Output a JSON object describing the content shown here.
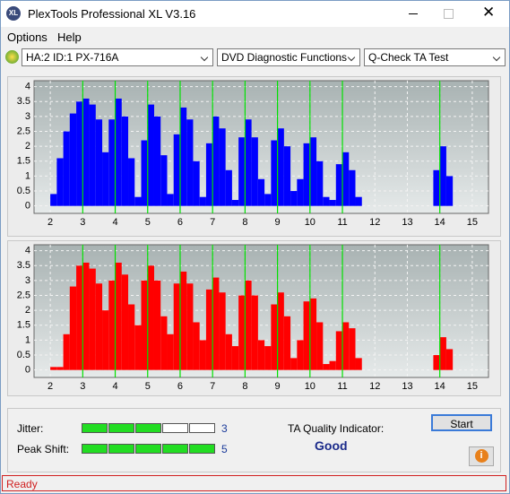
{
  "window": {
    "icon": "XL",
    "title": "PlexTools Professional XL V3.16"
  },
  "menu": [
    "Options",
    "Help"
  ],
  "toolbar": {
    "drive": "HA:2 ID:1  PX-716A",
    "function": "DVD Diagnostic Functions",
    "test": "Q-Check TA Test"
  },
  "charts": [
    {
      "type": "histogram",
      "color": "#0000ff",
      "grid": true,
      "xlim": [
        1.5,
        15.5
      ],
      "ylim": [
        -0.25,
        4.2
      ],
      "xticks": [
        2,
        3,
        4,
        5,
        6,
        7,
        8,
        9,
        10,
        11,
        12,
        13,
        14,
        15
      ],
      "yticks": [
        0,
        0.5,
        1,
        1.5,
        2,
        2.5,
        3,
        3.5,
        4
      ],
      "markers": [
        3,
        4,
        5,
        6,
        7,
        8,
        9,
        10,
        11,
        14
      ],
      "marker_color": "#00e000",
      "bins": [
        2.0,
        2.2,
        2.4,
        2.6,
        2.8,
        3.0,
        3.2,
        3.4,
        3.6,
        3.8,
        4.0,
        4.2,
        4.4,
        4.6,
        4.8,
        5.0,
        5.2,
        5.4,
        5.6,
        5.8,
        6.0,
        6.2,
        6.4,
        6.6,
        6.8,
        7.0,
        7.2,
        7.4,
        7.6,
        7.8,
        8.0,
        8.2,
        8.4,
        8.6,
        8.8,
        9.0,
        9.2,
        9.4,
        9.6,
        9.8,
        10.0,
        10.2,
        10.4,
        10.6,
        10.8,
        11.0,
        11.2,
        11.4,
        11.6,
        11.8,
        12.0,
        12.2,
        12.4,
        12.6,
        12.8,
        13.0,
        13.2,
        13.4,
        13.6,
        13.8,
        14.0,
        14.2,
        14.4,
        14.6
      ],
      "values": [
        0.4,
        1.6,
        2.5,
        3.1,
        3.5,
        3.6,
        3.4,
        2.9,
        1.8,
        2.9,
        3.6,
        3.0,
        1.6,
        0.3,
        2.2,
        3.4,
        3.0,
        1.7,
        0.4,
        2.4,
        3.3,
        2.9,
        1.5,
        0.3,
        2.1,
        3.0,
        2.6,
        1.2,
        0.2,
        2.3,
        2.9,
        2.3,
        0.9,
        0.4,
        2.2,
        2.6,
        2.0,
        0.5,
        0.9,
        2.1,
        2.3,
        1.5,
        0.3,
        0.2,
        1.4,
        1.8,
        1.2,
        0.3,
        0,
        0,
        0,
        0,
        0,
        0,
        0,
        0,
        0,
        0,
        0,
        1.2,
        2.0,
        1.0,
        0
      ]
    },
    {
      "type": "histogram",
      "color": "#ff0000",
      "grid": true,
      "xlim": [
        1.5,
        15.5
      ],
      "ylim": [
        -0.25,
        4.2
      ],
      "xticks": [
        2,
        3,
        4,
        5,
        6,
        7,
        8,
        9,
        10,
        11,
        12,
        13,
        14,
        15
      ],
      "yticks": [
        0,
        0.5,
        1,
        1.5,
        2,
        2.5,
        3,
        3.5,
        4
      ],
      "markers": [
        3,
        4,
        5,
        6,
        7,
        8,
        9,
        10,
        11,
        14
      ],
      "marker_color": "#00e000",
      "bins": [
        2.0,
        2.2,
        2.4,
        2.6,
        2.8,
        3.0,
        3.2,
        3.4,
        3.6,
        3.8,
        4.0,
        4.2,
        4.4,
        4.6,
        4.8,
        5.0,
        5.2,
        5.4,
        5.6,
        5.8,
        6.0,
        6.2,
        6.4,
        6.6,
        6.8,
        7.0,
        7.2,
        7.4,
        7.6,
        7.8,
        8.0,
        8.2,
        8.4,
        8.6,
        8.8,
        9.0,
        9.2,
        9.4,
        9.6,
        9.8,
        10.0,
        10.2,
        10.4,
        10.6,
        10.8,
        11.0,
        11.2,
        11.4,
        11.6,
        11.8,
        12.0,
        12.2,
        12.4,
        12.6,
        12.8,
        13.0,
        13.2,
        13.4,
        13.6,
        13.8,
        14.0,
        14.2,
        14.4,
        14.6
      ],
      "values": [
        0.1,
        0.1,
        1.2,
        2.8,
        3.5,
        3.6,
        3.4,
        2.9,
        2.0,
        3.0,
        3.6,
        3.2,
        2.2,
        1.5,
        3.0,
        3.5,
        3.0,
        1.8,
        1.2,
        2.9,
        3.3,
        2.9,
        1.6,
        1.0,
        2.7,
        3.1,
        2.6,
        1.2,
        0.8,
        2.5,
        3.0,
        2.5,
        1.0,
        0.8,
        2.2,
        2.6,
        1.8,
        0.4,
        1.0,
        2.3,
        2.4,
        1.6,
        0.2,
        0.3,
        1.3,
        1.6,
        1.4,
        0.4,
        0,
        0,
        0,
        0,
        0,
        0,
        0,
        0,
        0,
        0,
        0,
        0.5,
        1.1,
        0.7,
        0
      ]
    }
  ],
  "results": {
    "jitter_label": "Jitter:",
    "jitter": 3,
    "peak_shift_label": "Peak Shift:",
    "peak_shift": 5,
    "ta_label": "TA Quality Indicator:",
    "ta_value": "Good",
    "start": "Start"
  },
  "status": "Ready"
}
